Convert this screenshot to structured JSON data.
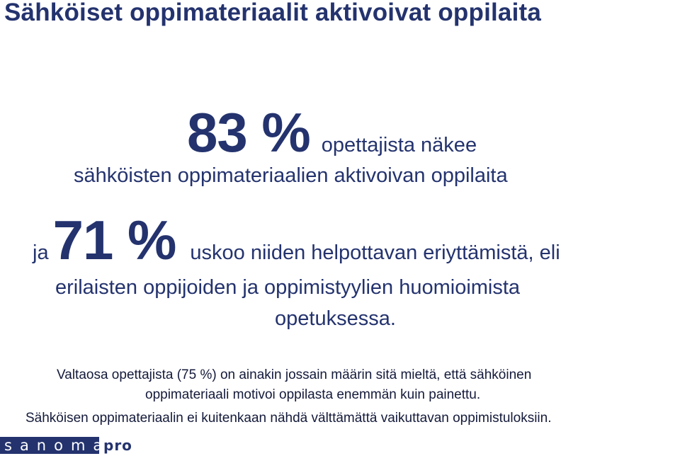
{
  "title": "Sähköiset oppimateriaalit aktivoivat oppilaita",
  "stat1": {
    "value": "83 %",
    "text_line1": "opettajista näkee",
    "text_line2": "sähköisten oppimateriaalien  aktivoivan oppilaita"
  },
  "stat2": {
    "prefix": "ja",
    "value": "71 %",
    "text_line1": "uskoo niiden helpottavan eriyttämistä, eli",
    "text_line2": "erilaisten oppijoiden ja oppimistyylien huomioimista",
    "text_line3": "opetuksessa."
  },
  "notes": {
    "line1": "Valtaosa opettajista (75 %) on ainakin jossain määrin sitä mieltä, että sähköinen",
    "line2": "oppimateriaali motivoi oppilasta enemmän kuin painettu.",
    "line3": "Sähköisen oppimateriaalin ei kuitenkaan nähdä välttämättä vaikuttavan oppimistuloksiin."
  },
  "logo": {
    "name": "sanoma",
    "suffix": "pro",
    "color": "#24336e"
  }
}
